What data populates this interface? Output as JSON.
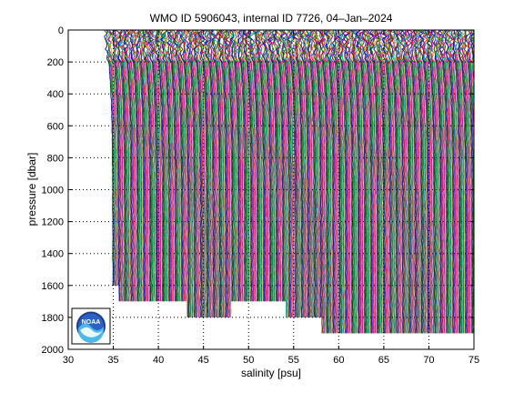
{
  "chart_data": {
    "type": "line",
    "title": "WMO ID 5906043, internal ID 7726, 04–Jan–2024",
    "xlabel": "salinity [psu]",
    "ylabel": "pressure [dbar]",
    "xlim": [
      30,
      75
    ],
    "ylim": [
      0,
      2000
    ],
    "y_reversed": true,
    "xticks": [
      "30",
      "35",
      "40",
      "45",
      "50",
      "55",
      "60",
      "65",
      "70",
      "75"
    ],
    "yticks": [
      "0",
      "200",
      "400",
      "600",
      "800",
      "1000",
      "1200",
      "1400",
      "1600",
      "1800",
      "2000"
    ],
    "grid": true,
    "profile_offset_psu": 0.1,
    "first_profile_surface_salinity": 34.3,
    "profile_colors": [
      "#0000ff",
      "#008000",
      "#ff0000",
      "#00bfbf",
      "#bf00bf",
      "#bfbf00",
      "#404040"
    ],
    "logo": "noaa-logo",
    "profiles": [
      {
        "x0": 35.0,
        "max_pressure": 1600
      },
      {
        "x0": 36.0,
        "max_pressure": 1700
      },
      {
        "x0": 38.0,
        "max_pressure": 1700
      },
      {
        "x0": 40.5,
        "max_pressure": 1700
      },
      {
        "x0": 42.5,
        "max_pressure": 1700
      },
      {
        "x0": 45.5,
        "max_pressure": 1800
      },
      {
        "x0": 47.5,
        "max_pressure": 1800
      },
      {
        "x0": 49.0,
        "max_pressure": 1700
      },
      {
        "x0": 51.5,
        "max_pressure": 1700
      },
      {
        "x0": 53.5,
        "max_pressure": 1700
      },
      {
        "x0": 55.5,
        "max_pressure": 1800
      },
      {
        "x0": 57.5,
        "max_pressure": 1800
      },
      {
        "x0": 59.5,
        "max_pressure": 1900
      },
      {
        "x0": 61.5,
        "max_pressure": 1900
      },
      {
        "x0": 63.5,
        "max_pressure": 1900
      },
      {
        "x0": 65.5,
        "max_pressure": 1900
      },
      {
        "x0": 67.5,
        "max_pressure": 1900
      },
      {
        "x0": 69.5,
        "max_pressure": 1900
      },
      {
        "x0": 71.5,
        "max_pressure": 1900
      },
      {
        "x0": 73.5,
        "max_pressure": 1900
      }
    ]
  }
}
